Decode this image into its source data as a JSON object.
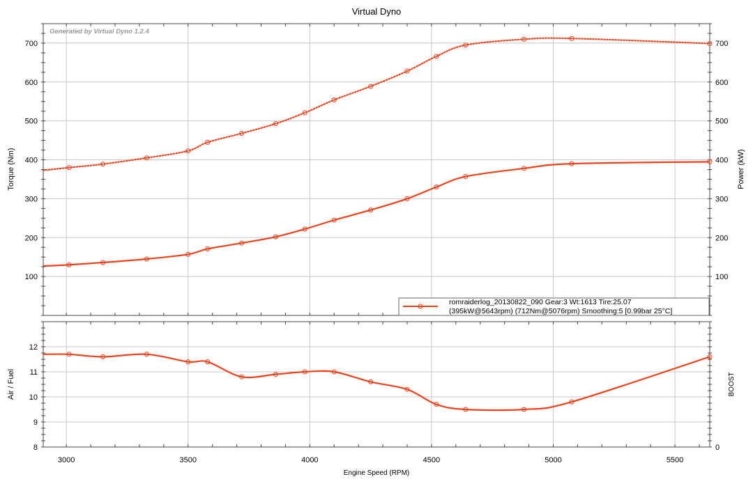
{
  "chart_data": [
    {
      "type": "line",
      "title": "Virtual Dyno",
      "watermark": "Generated by Virtual Dyno 1.2.4",
      "xlabel": "Engine Speed (RPM)",
      "ylabel": "Torque (Nm)",
      "y2label": "Power (kW)",
      "xlim": [
        2905,
        5643
      ],
      "ylim": [
        0,
        750
      ],
      "y2lim": [
        0,
        750
      ],
      "x_ticks": [
        3000,
        3500,
        4000,
        4500,
        5000,
        5500
      ],
      "y_ticks": [
        100,
        200,
        300,
        400,
        500,
        600,
        700
      ],
      "grid": true,
      "legend_position": "bottom-right",
      "legend": [
        "romraiderlog_20130822_090 Gear:3 Wt:1613 Tire:25.07",
        "(395kW@5643rpm) (712Nm@5076rpm) Smoothing:5 [0.99bar 25°C]"
      ],
      "color": "#f0401a",
      "x": [
        2905,
        3011,
        3150,
        3330,
        3500,
        3580,
        3720,
        3860,
        3980,
        4100,
        4250,
        4400,
        4520,
        4640,
        4880,
        5076,
        5643
      ],
      "series": [
        {
          "name": "Torque",
          "style": "dotted",
          "values": [
            373,
            380,
            389,
            405,
            423,
            445,
            468,
            493,
            521,
            554,
            589,
            628,
            666,
            695,
            710,
            712,
            699
          ]
        },
        {
          "name": "Power",
          "style": "solid",
          "values": [
            127,
            130,
            136,
            145,
            157,
            171,
            186,
            202,
            222,
            245,
            271,
            300,
            330,
            357,
            378,
            390,
            395
          ]
        }
      ]
    },
    {
      "type": "line",
      "xlabel": "Engine Speed (RPM)",
      "ylabel": "Air / Fuel",
      "y2label": "BOOST",
      "xlim": [
        2905,
        5643
      ],
      "ylim": [
        8,
        13
      ],
      "x_ticks": [
        3000,
        3500,
        4000,
        4500,
        5000,
        5500
      ],
      "y_ticks": [
        8,
        9,
        10,
        11,
        12
      ],
      "y2_ticks": [
        0
      ],
      "grid": true,
      "color": "#f0401a",
      "x": [
        2905,
        3011,
        3150,
        3330,
        3500,
        3580,
        3720,
        3860,
        3980,
        4100,
        4250,
        4400,
        4520,
        4640,
        4880,
        5076,
        5643
      ],
      "series": [
        {
          "name": "AFR",
          "style": "solid",
          "values": [
            11.7,
            11.7,
            11.6,
            11.7,
            11.4,
            11.4,
            10.8,
            10.9,
            11.0,
            11.0,
            10.6,
            10.3,
            9.7,
            9.5,
            9.5,
            9.8,
            11.6
          ]
        }
      ]
    }
  ]
}
